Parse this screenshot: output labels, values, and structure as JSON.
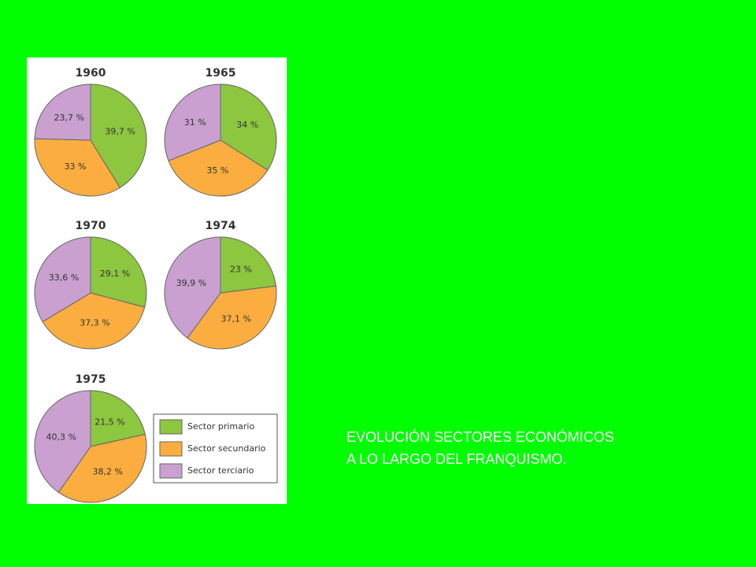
{
  "chart_data": [
    {
      "type": "pie",
      "title": "1960",
      "values": [
        39.7,
        33,
        23.7
      ],
      "value_labels": [
        "39,7 %",
        "33 %",
        "23,7 %"
      ]
    },
    {
      "type": "pie",
      "title": "1965",
      "values": [
        34,
        35,
        31
      ],
      "value_labels": [
        "34 %",
        "35 %",
        "31 %"
      ]
    },
    {
      "type": "pie",
      "title": "1970",
      "values": [
        29.1,
        37.3,
        33.6
      ],
      "value_labels": [
        "29,1 %",
        "37,3 %",
        "33,6 %"
      ]
    },
    {
      "type": "pie",
      "title": "1974",
      "values": [
        23,
        37.1,
        39.9
      ],
      "value_labels": [
        "23 %",
        "37,1 %",
        "39,9 %"
      ]
    },
    {
      "type": "pie",
      "title": "1975",
      "values": [
        21.5,
        38.2,
        40.3
      ],
      "value_labels": [
        "21,5 %",
        "38,2 %",
        "40,3 %"
      ]
    }
  ],
  "legend": {
    "labels": [
      "Sector primario",
      "Sector secundario",
      "Sector terciario"
    ],
    "colors": [
      "#8dc63f",
      "#fbae3f",
      "#c9a0d0"
    ]
  },
  "caption": [
    "EVOLUCIÓN SECTORES ECONÓMICOS",
    "A LO LARGO DEL FRANQUISMO."
  ]
}
